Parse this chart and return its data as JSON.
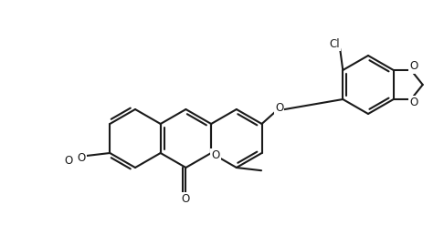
{
  "bg": "#ffffff",
  "lc": "#1a1a1a",
  "lw": 1.5,
  "figsize": [
    4.86,
    2.58
  ],
  "dpi": 100,
  "BL": 32,
  "labels": {
    "O_lac": {
      "text": "O",
      "fs": 8.5
    },
    "O_ether": {
      "text": "O",
      "fs": 8.5
    },
    "O_carbonyl": {
      "text": "O",
      "fs": 8.5
    },
    "O_methoxy": {
      "text": "O",
      "fs": 8.5
    },
    "O_diox1": {
      "text": "O",
      "fs": 8.5
    },
    "O_diox2": {
      "text": "O",
      "fs": 8.5
    },
    "Cl": {
      "text": "Cl",
      "fs": 8.5
    }
  }
}
